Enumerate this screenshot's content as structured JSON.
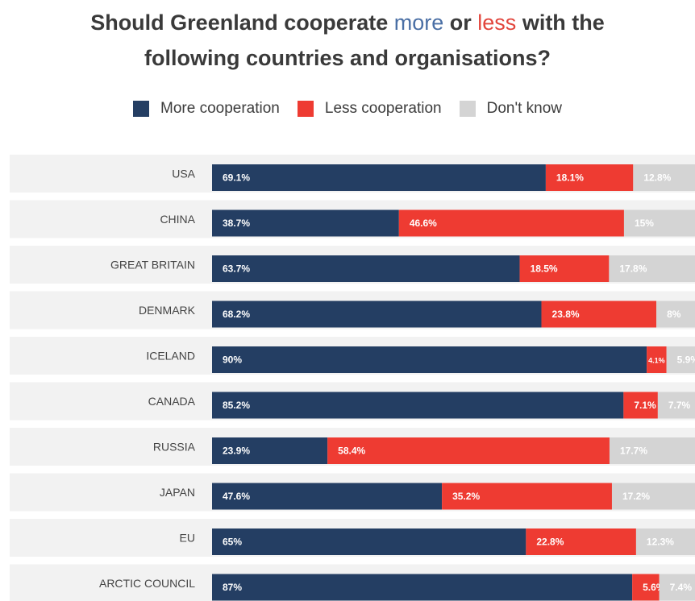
{
  "title": {
    "part1": "Should Greenland cooperate ",
    "more": "more",
    "part2": " or ",
    "less": "less",
    "part3": " with the",
    "line2": "following countries and organisations?"
  },
  "legend": [
    {
      "name": "More cooperation",
      "color": "#243e63"
    },
    {
      "name": "Less cooperation",
      "color": "#ee3b32"
    },
    {
      "name": "Don't know",
      "color": "#d4d4d4"
    }
  ],
  "chart_data": {
    "type": "bar",
    "orientation": "horizontal",
    "stacked": true,
    "categories": [
      "USA",
      "CHINA",
      "GREAT BRITAIN",
      "DENMARK",
      "ICELAND",
      "CANADA",
      "RUSSIA",
      "JAPAN",
      "EU",
      "ARCTIC COUNCIL"
    ],
    "series": [
      {
        "name": "More cooperation",
        "values": [
          69.1,
          38.7,
          63.7,
          68.2,
          90,
          85.2,
          23.9,
          47.6,
          65,
          87
        ],
        "labels": [
          "69.1%",
          "38.7%",
          "63.7%",
          "68.2%",
          "90%",
          "85.2%",
          "23.9%",
          "47.6%",
          "65%",
          "87%"
        ]
      },
      {
        "name": "Less cooperation",
        "values": [
          18.1,
          46.6,
          18.5,
          23.8,
          4.1,
          7.1,
          58.4,
          35.2,
          22.8,
          5.6
        ],
        "labels": [
          "18.1%",
          "46.6%",
          "18.5%",
          "23.8%",
          "4.1%",
          "7.1%",
          "58.4%",
          "35.2%",
          "22.8%",
          "5.6%"
        ]
      },
      {
        "name": "Don't know",
        "values": [
          12.8,
          15,
          17.8,
          8,
          5.9,
          7.7,
          17.7,
          17.2,
          12.3,
          7.4
        ],
        "labels": [
          "12.8%",
          "15%",
          "17.8%",
          "8%",
          "5.9%",
          "7.7%",
          "17.7%",
          "17.2%",
          "12.3%",
          "7.4%"
        ]
      }
    ],
    "xlim": [
      0,
      100
    ],
    "legend_position": "top-center",
    "grid": false
  }
}
